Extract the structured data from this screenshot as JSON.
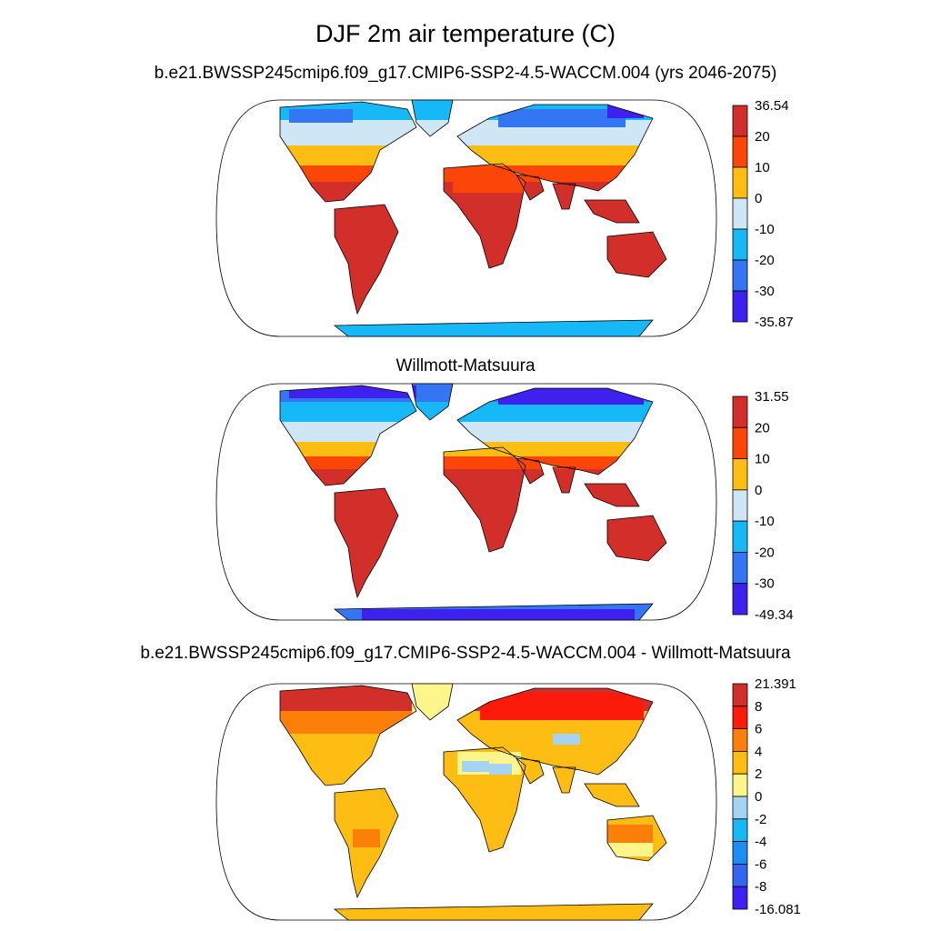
{
  "title": "DJF 2m air temperature (C)",
  "panels": [
    {
      "title": "b.e21.BWSSP245cmip6.f09_g17.CMIP6-SSP2-4.5-WACCM.004 (yrs 2046-2075)",
      "colorbar": {
        "labels": [
          "36.54",
          "20",
          "10",
          "0",
          "-10",
          "-20",
          "-30",
          "-35.87"
        ],
        "colors": [
          "#d22f2a",
          "#fc4608",
          "#fdbd12",
          "#cfe6f5",
          "#16b8f8",
          "#3475f3",
          "#3e20ef"
        ]
      }
    },
    {
      "title": "Willmott-Matsuura",
      "colorbar": {
        "labels": [
          "31.55",
          "20",
          "10",
          "0",
          "-10",
          "-20",
          "-30",
          "-49.34"
        ],
        "colors": [
          "#d22f2a",
          "#fc4608",
          "#fdbd12",
          "#cfe6f5",
          "#16b8f8",
          "#3475f3",
          "#3e20ef"
        ]
      }
    },
    {
      "title": "b.e21.BWSSP245cmip6.f09_g17.CMIP6-SSP2-4.5-WACCM.004 - Willmott-Matsuura",
      "colorbar": {
        "labels": [
          "21.391",
          "8",
          "6",
          "4",
          "2",
          "0",
          "-2",
          "-4",
          "-6",
          "-8",
          "-16.081"
        ],
        "colors": [
          "#d22f2a",
          "#fc1a0b",
          "#fc7f09",
          "#fdbd12",
          "#fef68a",
          "#a4d4f2",
          "#16b8f8",
          "#1e8cf5",
          "#3266f1",
          "#3e20ef"
        ]
      }
    }
  ],
  "palette": {
    "land_neutral": "#fdbd12",
    "coast": "#000000",
    "ocean": "#ffffff"
  }
}
